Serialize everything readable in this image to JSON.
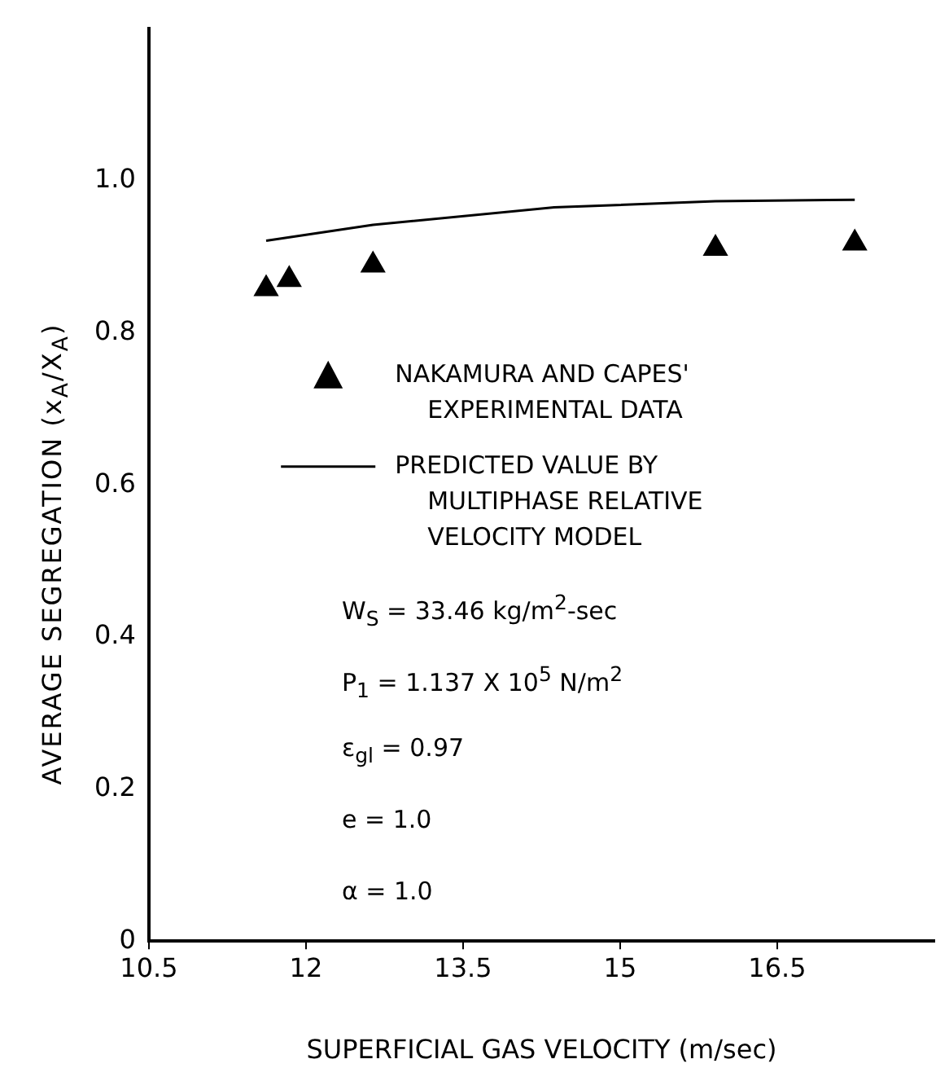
{
  "chart_data": {
    "type": "scatter",
    "xlabel": "SUPERFICIAL GAS VELOCITY (m/sec)",
    "ylabel": "AVERAGE SEGREGATION (x$_{A}$/X$_{A}$)",
    "xlim": [
      10.5,
      18
    ],
    "xticks": [
      10.5,
      12,
      13.5,
      15,
      16.5
    ],
    "ylim": [
      0,
      1.2
    ],
    "yticks": [
      {
        "value": 0,
        "label": "0"
      },
      0.2,
      0.4,
      0.6,
      0.8,
      {
        "value": 1,
        "label": "1.0"
      }
    ],
    "grid": false,
    "legend": "center",
    "series": [
      {
        "name": "NAKAMURA AND CAPES' EXPERIMENTAL DATA",
        "type": "scatter",
        "marker": "triangle",
        "color": "#000000",
        "x": [
          11.62,
          11.84,
          12.64,
          15.91,
          17.24
        ],
        "values": [
          0.858,
          0.87,
          0.889,
          0.911,
          0.918
        ]
      },
      {
        "name": "PREDICTED VALUE BY MULTIPHASE RELATIVE VELOCITY MODEL",
        "type": "line",
        "marker": "none",
        "color": "#000000",
        "x": [
          11.62,
          12.64,
          14.37,
          15.91,
          17.24
        ],
        "values": [
          0.921,
          0.942,
          0.965,
          0.973,
          0.975
        ]
      }
    ],
    "annotations": [
      "W$_{S}$ = 33.46 kg/m$^{2}$-sec",
      "P$_{1}$ = 1.137 X 10$^{5}$ N/m$^{2}$",
      "ε$_{gl}$ = 0.97",
      "e = 1.0",
      "α = 1.0"
    ]
  }
}
